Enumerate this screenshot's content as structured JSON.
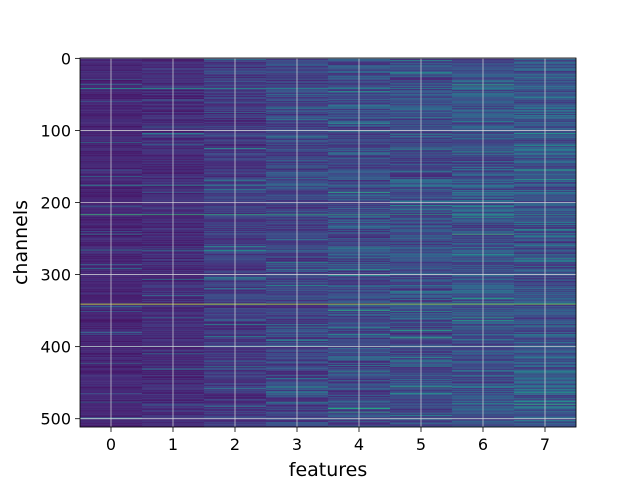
{
  "chart_data": {
    "type": "heatmap",
    "title": "",
    "xlabel": "features",
    "ylabel": "channels",
    "x_categories": [
      "0",
      "1",
      "2",
      "3",
      "4",
      "5",
      "6",
      "7"
    ],
    "x_ticks": [
      "0",
      "1",
      "2",
      "3",
      "4",
      "5",
      "6",
      "7"
    ],
    "y_ticks": [
      0,
      100,
      200,
      300,
      400,
      500
    ],
    "y_tick_labels": [
      "0",
      "100",
      "200",
      "300",
      "400",
      "500"
    ],
    "xlim": [
      -0.5,
      7.5
    ],
    "ylim": [
      511.5,
      -0.5
    ],
    "n_rows": 512,
    "n_cols": 8,
    "colormap": "viridis",
    "grid": true,
    "grid_color": "#dddddd",
    "column_base_level": [
      0.1,
      0.12,
      0.16,
      0.19,
      0.21,
      0.22,
      0.24,
      0.25
    ],
    "column_variation": [
      0.06,
      0.08,
      0.11,
      0.13,
      0.15,
      0.16,
      0.17,
      0.18
    ],
    "bright_rows": [
      {
        "row": 42,
        "value": 0.55
      },
      {
        "row": 176,
        "value": 0.5
      },
      {
        "row": 217,
        "value": 0.68
      },
      {
        "row": 266,
        "value": 0.45
      },
      {
        "row": 341,
        "value": 0.95
      },
      {
        "row": 400,
        "value": 0.45
      }
    ]
  }
}
